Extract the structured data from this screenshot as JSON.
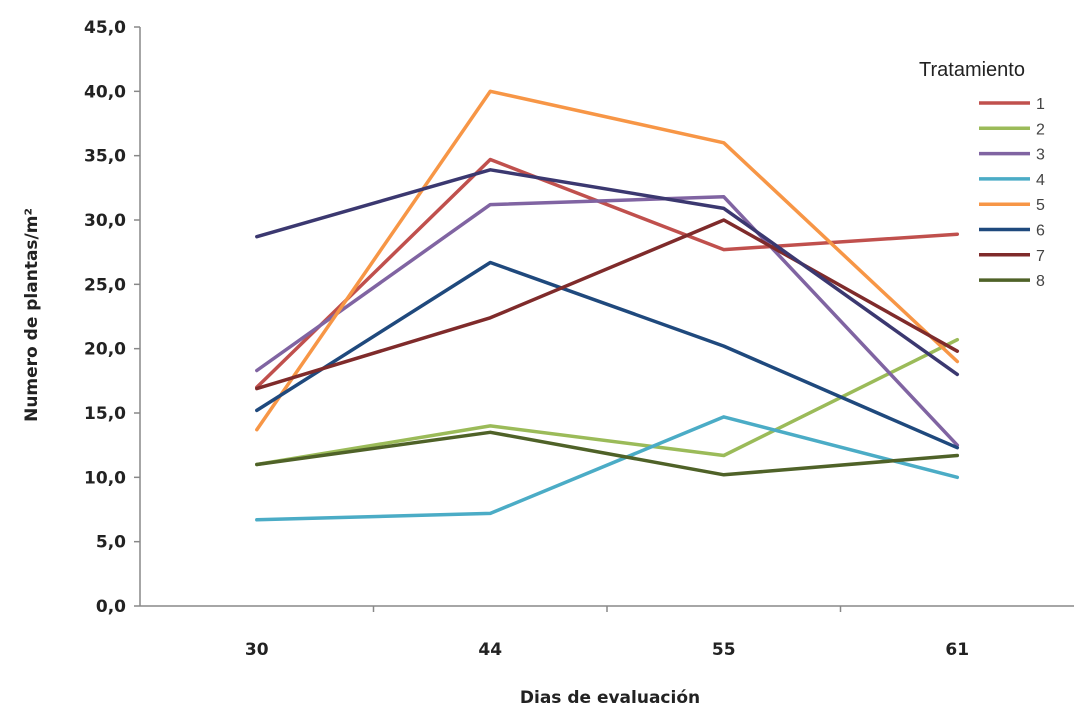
{
  "chart_data": {
    "type": "line",
    "x": [
      "30",
      "44",
      "55",
      "61"
    ],
    "xlabel": "Dias de evaluación",
    "ylabel": "Numero de plantas/m²",
    "ylim": [
      0,
      45
    ],
    "y_ticks": [
      "0,0",
      "5,0",
      "10,0",
      "15,0",
      "20,0",
      "25,0",
      "30,0",
      "35,0",
      "40,0",
      "45,0"
    ],
    "grid": false,
    "legend": {
      "title": "Tratamiento",
      "position": "right"
    },
    "series": [
      {
        "name": "1",
        "color": "#c0504d",
        "values": [
          17.0,
          34.7,
          27.7,
          28.9
        ]
      },
      {
        "name": "2",
        "color": "#9bbb59",
        "values": [
          11.0,
          14.0,
          11.7,
          20.7
        ]
      },
      {
        "name": "3",
        "color": "#8064a2",
        "values": [
          18.3,
          31.2,
          31.8,
          12.5
        ]
      },
      {
        "name": "4",
        "color": "#4bacc6",
        "values": [
          6.7,
          7.2,
          14.7,
          10.0
        ]
      },
      {
        "name": "5",
        "color": "#f79646",
        "values": [
          13.7,
          40.0,
          36.0,
          19.0
        ]
      },
      {
        "name": "6",
        "color": "#1f497d",
        "values": [
          15.2,
          26.7,
          20.2,
          12.3
        ]
      },
      {
        "name": "7",
        "color": "#7f2b2b",
        "values": [
          16.9,
          22.4,
          30.0,
          19.8
        ]
      },
      {
        "name": "8",
        "color": "#4f6228",
        "values": [
          11.0,
          13.5,
          10.2,
          11.7
        ]
      },
      {
        "name": "",
        "color": "#3b3870",
        "values": [
          28.7,
          33.9,
          30.9,
          18.0
        ]
      }
    ]
  }
}
